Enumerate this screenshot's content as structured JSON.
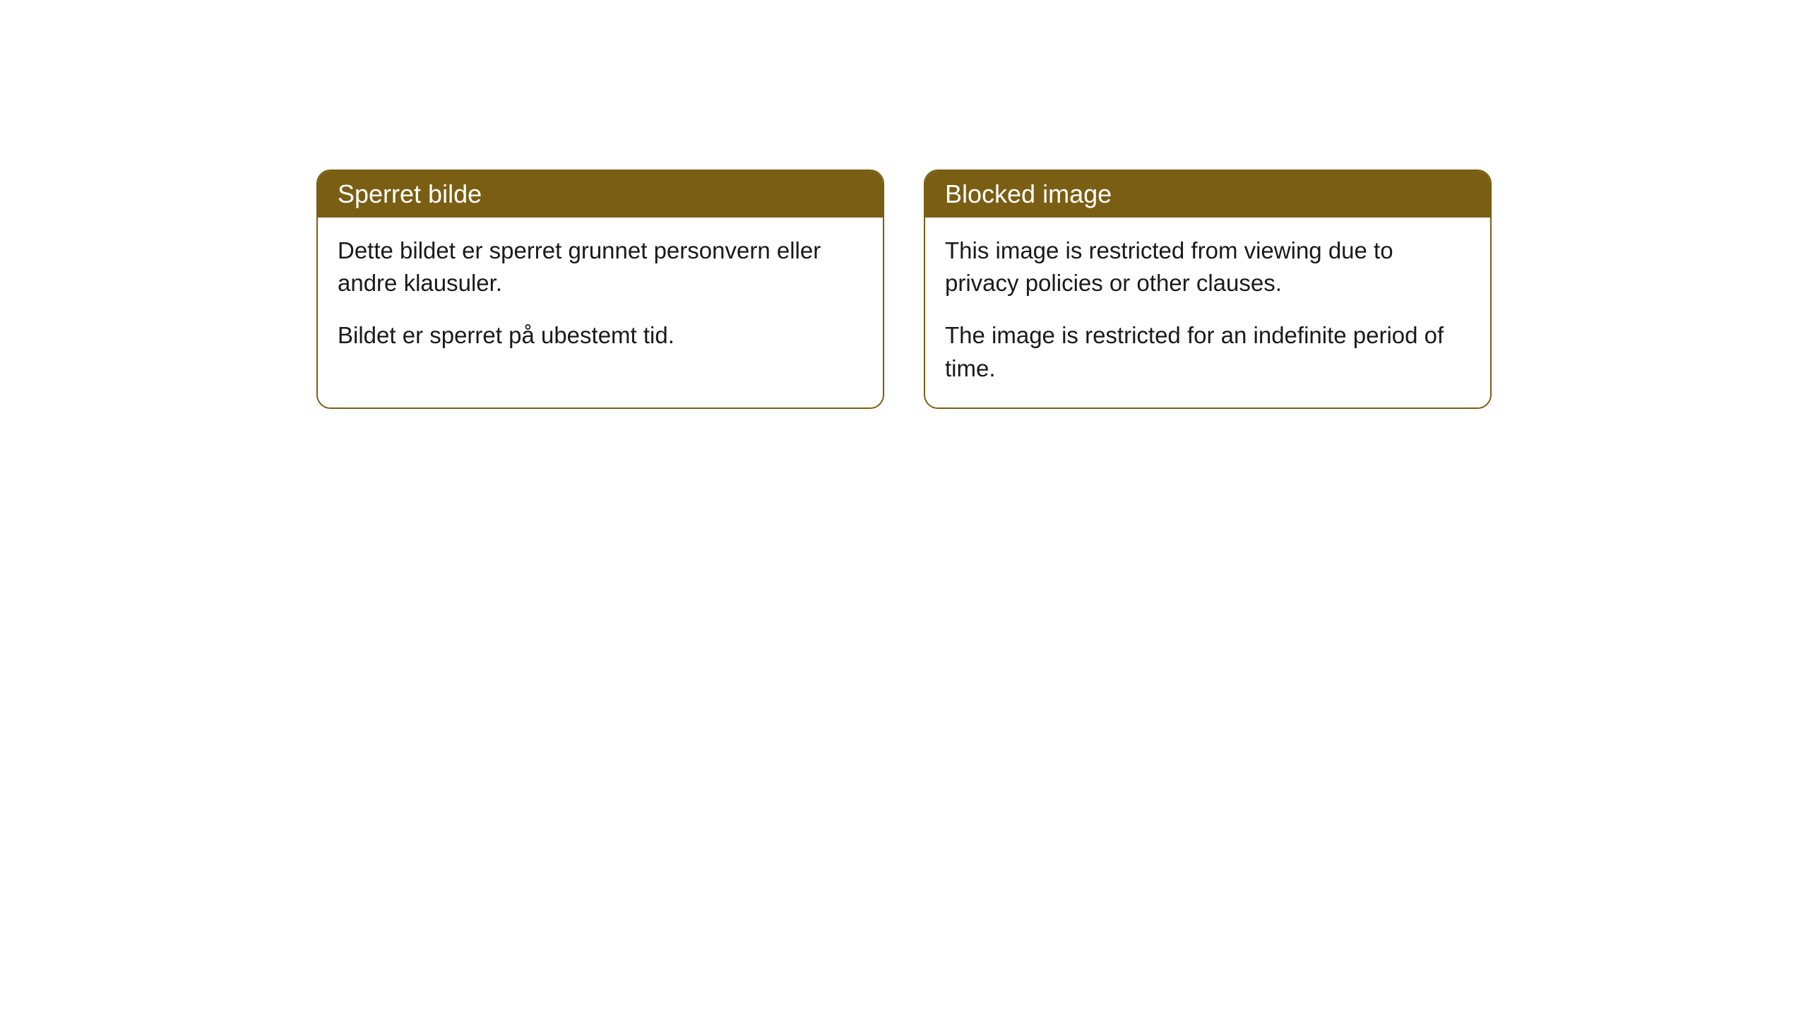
{
  "cards": [
    {
      "title": "Sperret bilde",
      "paragraph1": "Dette bildet er sperret grunnet personvern eller andre klausuler.",
      "paragraph2": "Bildet er sperret på ubestemt tid."
    },
    {
      "title": "Blocked image",
      "paragraph1": "This image is restricted from viewing due to privacy policies or other clauses.",
      "paragraph2": "The image is restricted for an indefinite period of time."
    }
  ],
  "style": {
    "header_bg_color": "#7a5e13",
    "header_text_color": "#ffffff",
    "border_color": "#7a5e13",
    "body_bg_color": "#ffffff",
    "body_text_color": "#1a1a1a",
    "border_radius": 20,
    "title_fontsize": 36,
    "body_fontsize": 33
  }
}
